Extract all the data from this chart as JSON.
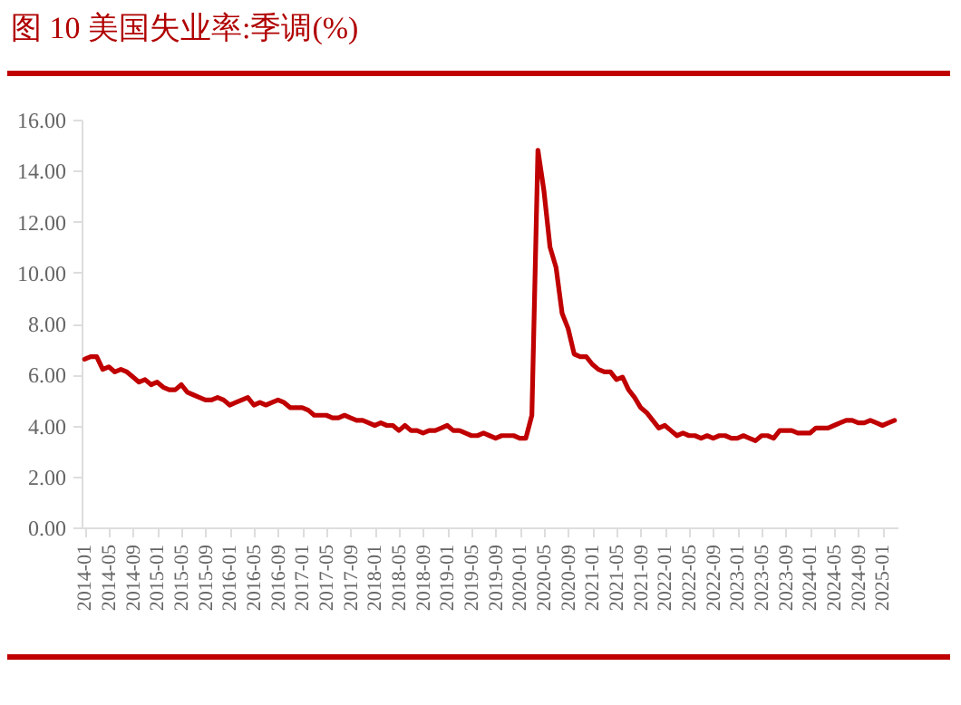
{
  "chart_data": {
    "type": "line",
    "title": "图 10 美国失业率:季调(%)",
    "categories": [
      "2014-01",
      null,
      null,
      null,
      "2014-05",
      null,
      null,
      null,
      "2014-09",
      null,
      null,
      null,
      "2015-01",
      null,
      null,
      null,
      "2015-05",
      null,
      null,
      null,
      "2015-09",
      null,
      null,
      null,
      "2016-01",
      null,
      null,
      null,
      "2016-05",
      null,
      null,
      null,
      "2016-09",
      null,
      null,
      null,
      "2017-01",
      null,
      null,
      null,
      "2017-05",
      null,
      null,
      null,
      "2017-09",
      null,
      null,
      null,
      "2018-01",
      null,
      null,
      null,
      "2018-05",
      null,
      null,
      null,
      "2018-09",
      null,
      null,
      null,
      "2019-01",
      null,
      null,
      null,
      "2019-05",
      null,
      null,
      null,
      "2019-09",
      null,
      null,
      null,
      "2020-01",
      null,
      null,
      null,
      "2020-05",
      null,
      null,
      null,
      "2020-09",
      null,
      null,
      null,
      "2021-01",
      null,
      null,
      null,
      "2021-05",
      null,
      null,
      null,
      "2021-09",
      null,
      null,
      null,
      "2022-01",
      null,
      null,
      null,
      "2022-05",
      null,
      null,
      null,
      "2022-09",
      null,
      null,
      null,
      "2023-01",
      null,
      null,
      null,
      "2023-05",
      null,
      null,
      null,
      "2023-09",
      null,
      null,
      null,
      "2024-01",
      null,
      null,
      null,
      "2024-05",
      null,
      null,
      null,
      "2024-09",
      null,
      null,
      null,
      "2025-01",
      null,
      null
    ],
    "series": [
      {
        "color": "#c00000",
        "values": [
          6.6,
          6.7,
          6.7,
          6.2,
          6.3,
          6.1,
          6.2,
          6.1,
          5.9,
          5.7,
          5.8,
          5.6,
          5.7,
          5.5,
          5.4,
          5.4,
          5.6,
          5.3,
          5.2,
          5.1,
          5.0,
          5.0,
          5.1,
          5.0,
          4.8,
          4.9,
          5.0,
          5.1,
          4.8,
          4.9,
          4.8,
          4.9,
          5.0,
          4.9,
          4.7,
          4.7,
          4.7,
          4.6,
          4.4,
          4.4,
          4.4,
          4.3,
          4.3,
          4.4,
          4.3,
          4.2,
          4.2,
          4.1,
          4.0,
          4.1,
          4.0,
          4.0,
          3.8,
          4.0,
          3.8,
          3.8,
          3.7,
          3.8,
          3.8,
          3.9,
          4.0,
          3.8,
          3.8,
          3.7,
          3.6,
          3.6,
          3.7,
          3.6,
          3.5,
          3.6,
          3.6,
          3.6,
          3.5,
          3.5,
          4.4,
          14.8,
          13.2,
          11.0,
          10.2,
          8.4,
          7.8,
          6.8,
          6.7,
          6.7,
          6.4,
          6.2,
          6.1,
          6.1,
          5.8,
          5.9,
          5.4,
          5.1,
          4.7,
          4.5,
          4.2,
          3.9,
          4.0,
          3.8,
          3.6,
          3.7,
          3.6,
          3.6,
          3.5,
          3.6,
          3.5,
          3.6,
          3.6,
          3.5,
          3.5,
          3.6,
          3.5,
          3.4,
          3.6,
          3.6,
          3.5,
          3.8,
          3.8,
          3.8,
          3.7,
          3.7,
          3.7,
          3.9,
          3.9,
          3.9,
          4.0,
          4.1,
          4.2,
          4.2,
          4.1,
          4.1,
          4.2,
          4.1,
          4.0,
          4.1,
          4.2
        ]
      }
    ],
    "ylim": [
      0,
      16
    ],
    "yticks": [
      {
        "value": 0,
        "label": "0.00"
      },
      {
        "value": 2,
        "label": "2.00"
      },
      {
        "value": 4,
        "label": "4.00"
      },
      {
        "value": 6,
        "label": "6.00"
      },
      {
        "value": 8,
        "label": "8.00"
      },
      {
        "value": 10,
        "label": "10.00"
      },
      {
        "value": 12,
        "label": "12.00"
      },
      {
        "value": 14,
        "label": "14.00"
      },
      {
        "value": 16,
        "label": "16.00"
      }
    ]
  }
}
